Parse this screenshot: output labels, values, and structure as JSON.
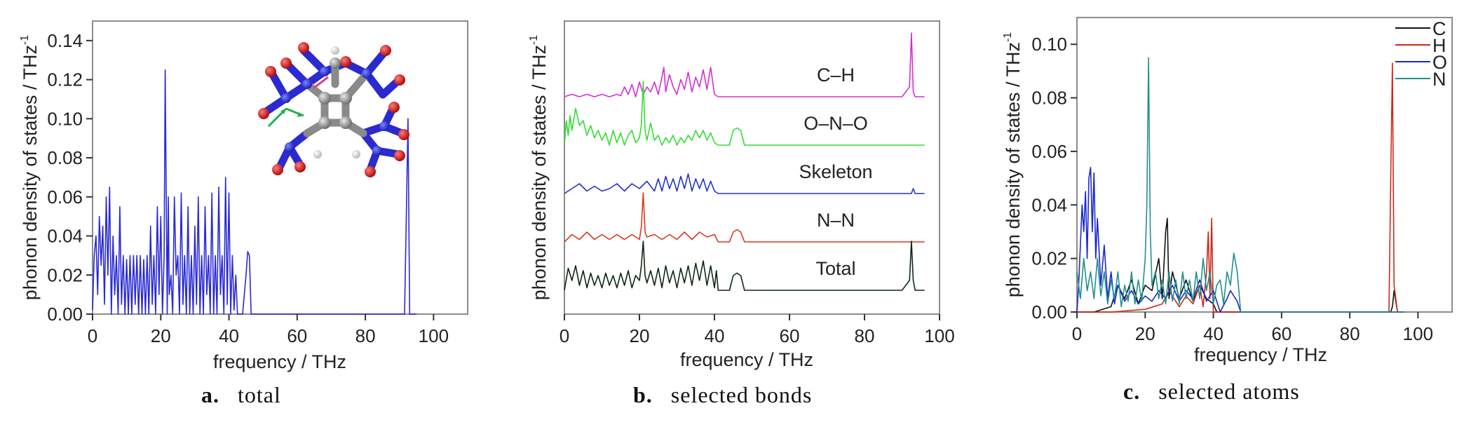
{
  "chart_data": [
    {
      "type": "line",
      "panel_letter": "a.",
      "caption": "total",
      "xlabel": "frequency / THz",
      "ylabel": "phonon density of states / THz",
      "ylabel_sup": "-1",
      "xlim": [
        0,
        110
      ],
      "ylim": [
        0,
        0.15
      ],
      "xticks": [
        "0",
        "20",
        "40",
        "60",
        "80",
        "100"
      ],
      "yticks": [
        "0.00",
        "0.02",
        "0.04",
        "0.06",
        "0.08",
        "0.10",
        "0.12",
        "0.14"
      ],
      "grid": false,
      "inset": "molecule-structure",
      "series": [
        {
          "color": "#2a2ad6",
          "x": [
            0,
            0.5,
            1,
            1.5,
            2,
            2.5,
            3,
            3.5,
            4,
            4.5,
            5,
            5.5,
            6,
            6.5,
            7,
            7.5,
            8,
            8.5,
            9,
            9.5,
            10,
            10.5,
            11,
            11.5,
            12,
            12.5,
            13,
            13.5,
            14,
            14.5,
            15,
            15.5,
            16,
            16.5,
            17,
            17.5,
            18,
            18.5,
            19,
            19.5,
            20,
            20.5,
            21,
            21.3,
            21.6,
            21.9,
            22.2,
            22.5,
            23,
            23.5,
            24,
            24.5,
            25,
            25.5,
            26,
            26.5,
            27,
            27.5,
            28,
            28.5,
            29,
            29.5,
            30,
            30.5,
            31,
            31.5,
            32,
            32.5,
            33,
            33.5,
            34,
            34.5,
            35,
            35.5,
            36,
            36.5,
            37,
            37.5,
            38,
            38.5,
            39,
            39.5,
            40,
            40.5,
            41,
            41.5,
            42,
            42.5,
            43,
            44,
            45,
            45.5,
            46,
            46.5,
            47,
            47.5,
            48,
            60,
            80,
            91.5,
            92,
            92.5,
            93,
            93.5,
            94,
            95
          ],
          "y": [
            0.002,
            0.03,
            0.04,
            0.01,
            0.05,
            0.025,
            0.045,
            0.005,
            0.06,
            0.02,
            0.065,
            0.0,
            0.04,
            0.01,
            0.03,
            0.0,
            0.055,
            0.005,
            0.03,
            0.0,
            0.028,
            0.0,
            0.03,
            0.0,
            0.03,
            0.005,
            0.03,
            0.0,
            0.03,
            0.0,
            0.028,
            0.0,
            0.03,
            0.0,
            0.045,
            0.005,
            0.03,
            0.0,
            0.055,
            0.01,
            0.05,
            0.0,
            0.03,
            0.125,
            0.06,
            0.0,
            0.06,
            0.01,
            0.02,
            0.0,
            0.06,
            0.02,
            0.03,
            0.0,
            0.062,
            0.005,
            0.03,
            0.0,
            0.055,
            0.0,
            0.03,
            0.0,
            0.045,
            0.005,
            0.06,
            0.0,
            0.03,
            0.0,
            0.055,
            0.01,
            0.03,
            0.0,
            0.062,
            0.0,
            0.03,
            0.0,
            0.065,
            0.01,
            0.03,
            0.0,
            0.07,
            0.005,
            0.062,
            0.0,
            0.03,
            0.002,
            0.02,
            0.0,
            0.0,
            0.0,
            0.02,
            0.032,
            0.03,
            0.0,
            0.0,
            0.0,
            0.0,
            0.0,
            0.0,
            0.0,
            0.05,
            0.1,
            0.0,
            0.0,
            0.0,
            0.0
          ]
        }
      ]
    },
    {
      "type": "line",
      "panel_letter": "b.",
      "caption": "selected bonds",
      "xlabel": "frequency / THz",
      "ylabel": "phonon density of states / THz",
      "ylabel_sup": "-1",
      "xlim": [
        0,
        100
      ],
      "xticks": [
        "0",
        "20",
        "40",
        "60",
        "80",
        "100"
      ],
      "yticks": [],
      "stacked_offset": true,
      "grid": false,
      "series": [
        {
          "name": "C–H",
          "color": "#d42fd4",
          "offset": 4,
          "x": [
            0,
            2,
            4,
            6,
            8,
            10,
            12,
            14,
            15,
            16,
            17,
            18,
            19,
            20,
            21,
            22,
            23,
            24,
            25,
            26,
            26.5,
            27,
            28,
            29,
            30,
            31,
            32,
            33,
            34,
            35,
            36,
            37,
            38,
            39,
            40,
            41,
            50,
            90,
            92,
            92.5,
            93,
            93.5,
            94,
            96
          ],
          "y": [
            0.0,
            0.05,
            0.0,
            0.05,
            0.0,
            0.05,
            0.0,
            0.05,
            0.02,
            0.2,
            0.05,
            0.25,
            0.0,
            0.3,
            0.05,
            0.2,
            0.1,
            0.3,
            0.05,
            0.4,
            0.6,
            0.1,
            0.45,
            0.2,
            0.05,
            0.35,
            0.15,
            0.5,
            0.1,
            0.4,
            0.2,
            0.55,
            0.15,
            0.6,
            0.05,
            0.0,
            0.0,
            0.0,
            0.2,
            1.3,
            0.1,
            0.0,
            0.0,
            0.0
          ]
        },
        {
          "name": "O–N–O",
          "color": "#33dd33",
          "offset": 3,
          "x": [
            0,
            0.5,
            1,
            1.5,
            2,
            3,
            4,
            5,
            6,
            7,
            8,
            9,
            10,
            11,
            12,
            13,
            14,
            15,
            16,
            17,
            18,
            19,
            20,
            20.5,
            21,
            21.5,
            22,
            23,
            24,
            25,
            26,
            27,
            28,
            29,
            30,
            31,
            32,
            33,
            34,
            35,
            36,
            37,
            38,
            39,
            40,
            41,
            44,
            45,
            46,
            47,
            48,
            60,
            96
          ],
          "y": [
            0.0,
            0.5,
            0.2,
            0.6,
            0.3,
            0.75,
            0.4,
            0.5,
            0.2,
            0.4,
            0.15,
            0.3,
            0.1,
            0.25,
            0.0,
            0.3,
            0.05,
            0.25,
            0.0,
            0.2,
            0.3,
            0.05,
            0.15,
            0.4,
            1.3,
            0.3,
            0.1,
            0.45,
            0.1,
            0.2,
            0.0,
            0.15,
            0.05,
            0.2,
            0.0,
            0.15,
            0.05,
            0.2,
            0.1,
            0.3,
            0.15,
            0.3,
            0.1,
            0.25,
            0.05,
            0.0,
            0.0,
            0.3,
            0.35,
            0.3,
            0.0,
            0.0,
            0.0
          ]
        },
        {
          "name": "Skeleton",
          "color": "#2233cc",
          "offset": 2,
          "x": [
            0,
            2,
            4,
            6,
            8,
            10,
            12,
            14,
            16,
            18,
            20,
            22,
            24,
            25,
            26,
            27,
            28,
            29,
            30,
            31,
            32,
            33,
            34,
            35,
            36,
            37,
            38,
            39,
            40,
            41,
            50,
            90,
            92.5,
            93,
            93.5,
            96
          ],
          "y": [
            0.0,
            0.1,
            0.2,
            0.05,
            0.15,
            0.05,
            0.1,
            0.2,
            0.05,
            0.2,
            0.1,
            0.25,
            0.05,
            0.3,
            0.05,
            0.35,
            0.1,
            0.3,
            0.05,
            0.35,
            0.1,
            0.4,
            0.05,
            0.3,
            0.1,
            0.3,
            0.05,
            0.25,
            0.05,
            0.0,
            0.0,
            0.0,
            0.0,
            0.1,
            0.0,
            0.0
          ]
        },
        {
          "name": "N–N",
          "color": "#d83a1c",
          "offset": 1,
          "x": [
            0,
            2,
            4,
            6,
            8,
            10,
            12,
            14,
            16,
            18,
            20,
            20.5,
            21,
            21.5,
            22,
            24,
            26,
            28,
            30,
            32,
            34,
            36,
            38,
            40,
            41,
            44,
            45,
            46,
            47,
            48,
            60,
            96
          ],
          "y": [
            0.0,
            0.15,
            0.05,
            0.2,
            0.05,
            0.15,
            0.05,
            0.15,
            0.05,
            0.15,
            0.05,
            0.3,
            1.0,
            0.2,
            0.1,
            0.15,
            0.05,
            0.15,
            0.05,
            0.2,
            0.05,
            0.2,
            0.1,
            0.15,
            0.0,
            0.0,
            0.2,
            0.25,
            0.2,
            0.0,
            0.0,
            0.0
          ]
        },
        {
          "name": "Total",
          "color": "#102814",
          "offset": 0,
          "x": [
            0,
            1,
            2,
            3,
            4,
            5,
            6,
            7,
            8,
            9,
            10,
            11,
            12,
            13,
            14,
            15,
            16,
            17,
            18,
            19,
            20,
            20.5,
            21,
            21.5,
            22,
            23,
            24,
            25,
            26,
            27,
            28,
            29,
            30,
            31,
            32,
            33,
            34,
            35,
            36,
            37,
            38,
            39,
            40,
            40.5,
            41,
            44,
            45,
            46,
            47,
            48,
            60,
            90,
            92,
            92.5,
            93,
            93.5,
            94,
            96
          ],
          "y": [
            0.0,
            0.45,
            0.2,
            0.5,
            0.1,
            0.4,
            0.05,
            0.35,
            0.1,
            0.3,
            0.05,
            0.35,
            0.1,
            0.3,
            0.05,
            0.35,
            0.1,
            0.4,
            0.05,
            0.3,
            0.2,
            0.5,
            1.0,
            0.3,
            0.15,
            0.4,
            0.1,
            0.45,
            0.05,
            0.5,
            0.15,
            0.4,
            0.05,
            0.45,
            0.15,
            0.5,
            0.1,
            0.55,
            0.2,
            0.6,
            0.1,
            0.5,
            0.05,
            0.4,
            0.0,
            0.0,
            0.3,
            0.35,
            0.3,
            0.0,
            0.0,
            0.0,
            0.2,
            1.0,
            0.2,
            0.0,
            0.0,
            0.0
          ]
        }
      ]
    },
    {
      "type": "line",
      "panel_letter": "c.",
      "caption": "selected atoms",
      "xlabel": "frequency / THz",
      "ylabel": "phonon density of states / THz",
      "ylabel_sup": "-1",
      "xlim": [
        0,
        110
      ],
      "ylim": [
        0,
        0.11
      ],
      "xticks": [
        "0",
        "20",
        "40",
        "60",
        "80",
        "100"
      ],
      "yticks": [
        "0.00",
        "0.02",
        "0.04",
        "0.06",
        "0.08",
        "0.10"
      ],
      "legend": "top-right",
      "grid": false,
      "series": [
        {
          "name": "C",
          "color": "#111111",
          "x": [
            0,
            5,
            10,
            12,
            14,
            16,
            18,
            20,
            22,
            24,
            25,
            26,
            26.5,
            27,
            28,
            30,
            32,
            34,
            36,
            38,
            40,
            41,
            60,
            92,
            92.5,
            93,
            94,
            96
          ],
          "y": [
            0.0,
            0.0,
            0.002,
            0.01,
            0.005,
            0.012,
            0.003,
            0.01,
            0.008,
            0.02,
            0.005,
            0.03,
            0.035,
            0.005,
            0.015,
            0.005,
            0.012,
            0.004,
            0.01,
            0.005,
            0.003,
            0.0,
            0.0,
            0.0,
            0.002,
            0.008,
            0.0,
            0.0
          ]
        },
        {
          "name": "H",
          "color": "#cc2a1a",
          "x": [
            0,
            10,
            20,
            25,
            27,
            30,
            32,
            34,
            36,
            37,
            38,
            38.5,
            39,
            39.5,
            40,
            41,
            60,
            91.5,
            92,
            92.5,
            93,
            94,
            96
          ],
          "y": [
            0.0,
            0.0,
            0.001,
            0.003,
            0.008,
            0.002,
            0.006,
            0.003,
            0.01,
            0.002,
            0.015,
            0.03,
            0.005,
            0.035,
            0.0,
            0.0,
            0.0,
            0.0,
            0.05,
            0.093,
            0.01,
            0.0,
            0.0
          ]
        },
        {
          "name": "O",
          "color": "#1a28d0",
          "x": [
            0,
            0.5,
            1,
            1.5,
            2,
            2.5,
            3,
            3.5,
            4,
            4.5,
            5,
            5.5,
            6,
            7,
            8,
            9,
            10,
            11,
            12,
            14,
            16,
            18,
            20,
            22,
            24,
            26,
            28,
            30,
            32,
            34,
            36,
            38,
            40,
            42,
            44,
            45,
            46,
            47,
            48,
            60,
            96
          ],
          "y": [
            0.0,
            0.01,
            0.025,
            0.04,
            0.03,
            0.045,
            0.02,
            0.05,
            0.054,
            0.03,
            0.052,
            0.02,
            0.035,
            0.01,
            0.025,
            0.005,
            0.015,
            0.003,
            0.01,
            0.004,
            0.008,
            0.003,
            0.006,
            0.004,
            0.008,
            0.005,
            0.01,
            0.004,
            0.008,
            0.005,
            0.012,
            0.004,
            0.008,
            0.0,
            0.005,
            0.008,
            0.006,
            0.004,
            0.0,
            0.0,
            0.0
          ]
        },
        {
          "name": "N",
          "color": "#238f8f",
          "x": [
            0,
            1,
            2,
            3,
            4,
            5,
            6,
            7,
            8,
            9,
            10,
            11,
            12,
            13,
            14,
            15,
            16,
            17,
            18,
            19,
            20,
            20.5,
            21,
            21.5,
            22,
            23,
            24,
            25,
            26,
            27,
            28,
            29,
            30,
            31,
            32,
            33,
            34,
            35,
            36,
            37,
            38,
            39,
            40,
            41,
            42,
            43,
            44,
            45,
            46,
            47,
            48,
            60,
            96
          ],
          "y": [
            0.015,
            0.005,
            0.02,
            0.008,
            0.015,
            0.005,
            0.02,
            0.006,
            0.015,
            0.003,
            0.012,
            0.005,
            0.015,
            0.002,
            0.01,
            0.004,
            0.015,
            0.003,
            0.012,
            0.004,
            0.02,
            0.04,
            0.095,
            0.03,
            0.01,
            0.015,
            0.005,
            0.012,
            0.003,
            0.015,
            0.004,
            0.012,
            0.003,
            0.015,
            0.005,
            0.012,
            0.004,
            0.015,
            0.005,
            0.02,
            0.008,
            0.015,
            0.003,
            0.01,
            0.012,
            0.003,
            0.015,
            0.01,
            0.022,
            0.015,
            0.0,
            0.0,
            0.0
          ]
        }
      ]
    }
  ]
}
